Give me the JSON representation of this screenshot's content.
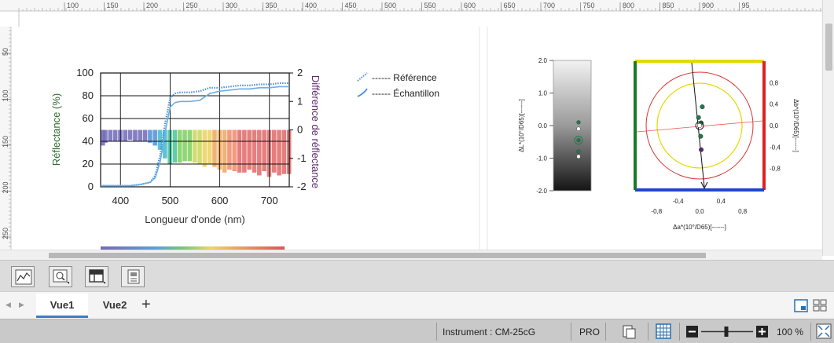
{
  "ruler": {
    "top_ticks": [
      "100",
      "150",
      "200",
      "250",
      "300",
      "350",
      "400",
      "450",
      "500",
      "550",
      "600",
      "650",
      "700",
      "750",
      "800",
      "850",
      "900",
      "95"
    ],
    "left_ticks": [
      "50",
      "100",
      "150",
      "200",
      "250"
    ]
  },
  "spectral_chart": {
    "type": "line",
    "xlabel": "Longueur d'onde (nm)",
    "ylabel": "Réflectance (%)",
    "ylabel_right": "Différence de réflectance",
    "xlim": [
      360,
      740
    ],
    "ylim": [
      0,
      100
    ],
    "ylim_right": [
      -2,
      2
    ],
    "x_ticks": [
      "400",
      "500",
      "600",
      "700"
    ],
    "y_ticks": [
      "0",
      "20",
      "40",
      "60",
      "80",
      "100"
    ],
    "y_ticks_right": [
      "2",
      "1",
      "0",
      "-1",
      "-2"
    ],
    "legend": [
      {
        "label": "------ Référence",
        "style": "dotted",
        "color": "#4a90d9"
      },
      {
        "label": "------ Échantillon",
        "style": "solid",
        "color": "#4a90d9"
      }
    ],
    "series": [
      {
        "name": "Référence",
        "x": [
          360,
          380,
          400,
          420,
          440,
          460,
          470,
          480,
          490,
          500,
          510,
          520,
          540,
          560,
          580,
          600,
          620,
          640,
          660,
          680,
          700,
          720,
          740
        ],
        "values": [
          1,
          1,
          1,
          1,
          2,
          4,
          10,
          28,
          56,
          78,
          82,
          83,
          83,
          84,
          87,
          87,
          88,
          89,
          89,
          90,
          90,
          91,
          91
        ]
      },
      {
        "name": "Échantillon",
        "x": [
          360,
          380,
          400,
          420,
          440,
          460,
          470,
          480,
          490,
          500,
          510,
          520,
          540,
          560,
          580,
          600,
          620,
          640,
          660,
          680,
          700,
          720,
          740
        ],
        "values": [
          1,
          1,
          1,
          1,
          2,
          4,
          8,
          22,
          48,
          70,
          74,
          75,
          75,
          76,
          82,
          84,
          85,
          86,
          86,
          87,
          87,
          88,
          88
        ]
      }
    ],
    "difference": {
      "x": [
        360,
        370,
        380,
        390,
        400,
        410,
        420,
        430,
        440,
        450,
        460,
        470,
        480,
        490,
        500,
        510,
        520,
        530,
        540,
        550,
        560,
        570,
        580,
        590,
        600,
        610,
        620,
        630,
        640,
        650,
        660,
        670,
        680,
        690,
        700,
        710,
        720,
        730,
        740
      ],
      "values": [
        -0.55,
        -0.45,
        -0.4,
        -0.4,
        -0.4,
        -0.4,
        -0.35,
        -0.4,
        -0.4,
        -0.4,
        -0.45,
        -0.55,
        -0.7,
        -1.0,
        -1.2,
        -1.15,
        -1.15,
        -1.1,
        -1.1,
        -1.15,
        -1.2,
        -1.3,
        -1.2,
        -1.3,
        -1.4,
        -1.5,
        -1.4,
        -1.45,
        -1.5,
        -1.5,
        -1.4,
        -1.5,
        -1.6,
        -1.45,
        -1.65,
        -1.5,
        -1.6,
        -1.55,
        -1.55
      ]
    }
  },
  "lightness_chart": {
    "type": "scatter",
    "ylabel": "ΔL*(10°/D65)[------]",
    "ylim": [
      -2.0,
      2.0
    ],
    "y_ticks": [
      "2.0",
      "1.0",
      "0.0",
      "-1.0",
      "-2.0"
    ],
    "points": [
      {
        "y": 0.1,
        "color": "#1e7b4e"
      },
      {
        "y": -0.1,
        "color": "#ffffff"
      },
      {
        "y": -0.45,
        "color": "#1e7b4e"
      },
      {
        "y": -0.8,
        "color": "#1e7b4e"
      },
      {
        "y": -0.95,
        "color": "#ffffff"
      }
    ]
  },
  "ab_chart": {
    "type": "scatter",
    "xlabel": "Δa*(10°/D65)[------]",
    "ylabel": "Δb*(10°/D65)[------]",
    "xlim": [
      -1.2,
      1.2
    ],
    "ylim": [
      -1.2,
      1.2
    ],
    "x_ticks_top": [
      "-0,4",
      "0,4"
    ],
    "x_ticks_bottom": [
      "-0,8",
      "0,0",
      "0,8"
    ],
    "y_ticks": [
      "0,8",
      "0,4",
      "0,0",
      "-0,4",
      "-0,8"
    ],
    "points": [
      {
        "x": 0.05,
        "y": 0.35,
        "color": "#1e7b4e"
      },
      {
        "x": -0.02,
        "y": 0.15,
        "color": "#1e7b4e"
      },
      {
        "x": 0.03,
        "y": 0.05,
        "color": "#1e7b4e"
      },
      {
        "x": 0.0,
        "y": 0.0,
        "color": "#ffffff"
      },
      {
        "x": 0.02,
        "y": -0.2,
        "color": "#1e7b4e"
      },
      {
        "x": 0.03,
        "y": -0.45,
        "color": "#5a2a6a"
      }
    ]
  },
  "toolbar": {
    "buttons": [
      {
        "icon": "graph-icon"
      },
      {
        "icon": "zoom-graph-icon"
      },
      {
        "icon": "table-icon"
      },
      {
        "icon": "layout-icon"
      }
    ]
  },
  "tabs": {
    "items": [
      {
        "label": "Vue1",
        "active": true
      },
      {
        "label": "Vue2",
        "active": false
      }
    ],
    "add_label": "+"
  },
  "status": {
    "instrument": "Instrument : CM-25cG",
    "mode": "PRO",
    "zoom": "100 %",
    "zoom_level": 0.5
  }
}
